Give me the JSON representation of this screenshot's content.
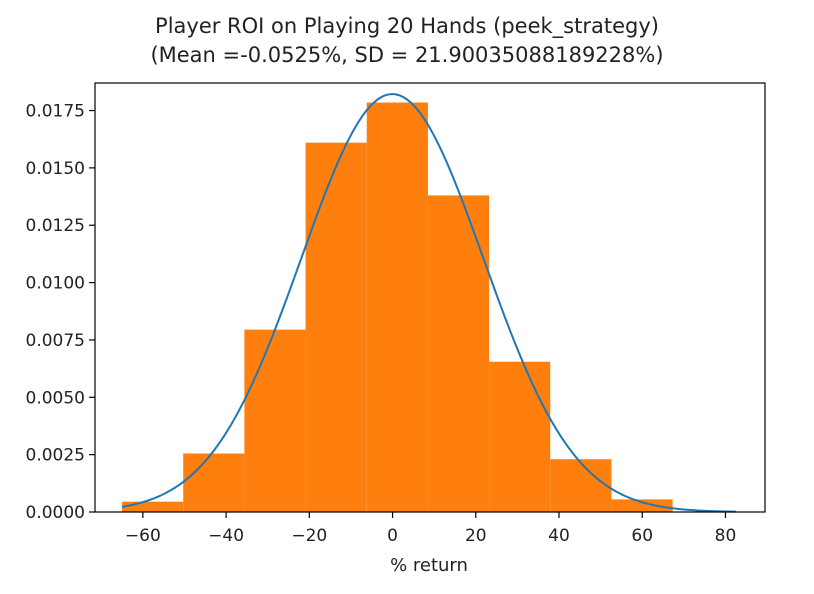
{
  "chart_data": {
    "type": "bar",
    "title_line1": "Player ROI on Playing 20 Hands (peek_strategy)",
    "title_line2": "(Mean =-0.0525%, SD = 21.90035088189228%)",
    "xlabel": "% return",
    "ylabel": "",
    "xlim": [
      -71.5,
      89.5
    ],
    "ylim": [
      0,
      0.0187
    ],
    "xticks": [
      -60,
      -40,
      -20,
      0,
      20,
      40,
      60,
      80
    ],
    "xtick_labels": [
      "−60",
      "−40",
      "−20",
      "0",
      "20",
      "40",
      "60",
      "80"
    ],
    "yticks": [
      0,
      0.0025,
      0.005,
      0.0075,
      0.01,
      0.0125,
      0.015,
      0.0175
    ],
    "ytick_labels": [
      "0.0000",
      "0.0025",
      "0.0050",
      "0.0075",
      "0.0100",
      "0.0125",
      "0.0150",
      "0.0175"
    ],
    "histogram": {
      "color": "#ff7f0e",
      "bin_edges": [
        -65,
        -50.3,
        -35.6,
        -20.9,
        -6.2,
        8.5,
        23.2,
        37.9,
        52.6,
        67.3
      ],
      "values": [
        0.00045,
        0.00255,
        0.00795,
        0.0161,
        0.01785,
        0.0138,
        0.00655,
        0.0023,
        0.00055
      ]
    },
    "normal_curve": {
      "color": "#1f77b4",
      "mean": -0.0525,
      "sd": 21.90035088189228,
      "x_range": [
        -65,
        82.5
      ]
    },
    "grid": false,
    "legend": "none"
  }
}
